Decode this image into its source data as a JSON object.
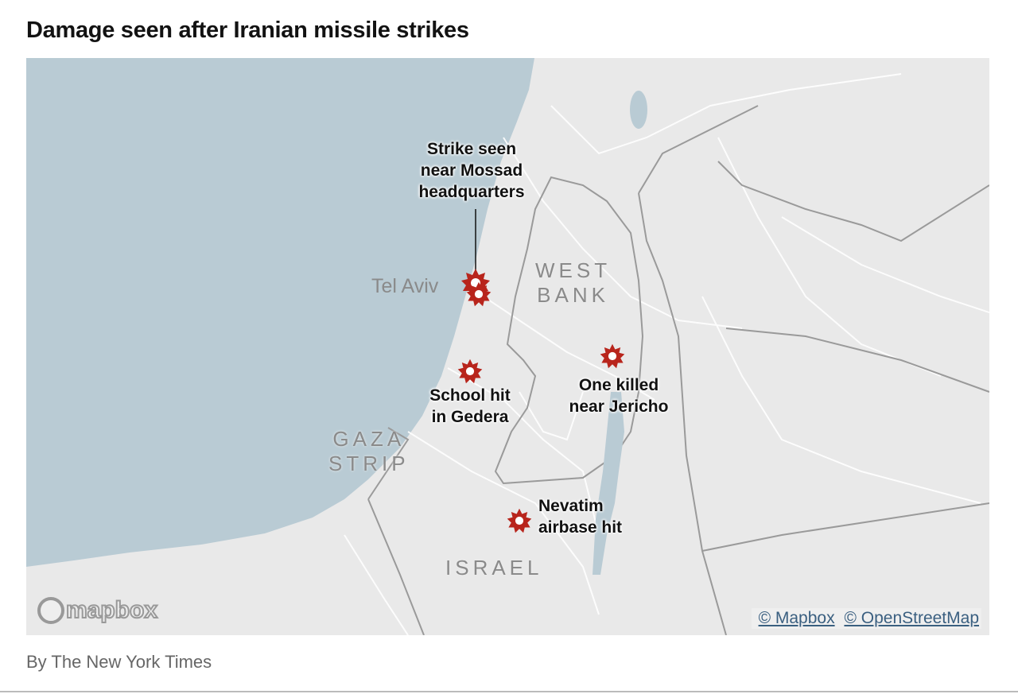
{
  "title": "Damage seen after Iranian missile strikes",
  "map": {
    "colors": {
      "water": "#b9cbd4",
      "land": "#e9e9e9",
      "roads": "#ffffff",
      "borders": "#9a9a9a",
      "strike": "#b8251c"
    },
    "regions": {
      "west_bank": [
        "WEST",
        "BANK"
      ],
      "gaza": [
        "GAZA",
        "STRIP"
      ],
      "israel": "ISRAEL"
    },
    "cities": {
      "tel_aviv": "Tel Aviv"
    },
    "annotations": [
      {
        "lines": [
          "Strike seen",
          "near Mossad",
          "headquarters"
        ],
        "icon": "explosion-icon"
      },
      {
        "lines": [
          "School hit",
          "in Gedera"
        ],
        "icon": "explosion-icon"
      },
      {
        "lines": [
          "One killed",
          "near Jericho"
        ],
        "icon": "explosion-icon"
      },
      {
        "lines": [
          "Nevatim",
          "airbase hit"
        ],
        "icon": "explosion-icon"
      }
    ],
    "logo": "mapbox",
    "attribution": [
      "© Mapbox",
      "© OpenStreetMap"
    ]
  },
  "credit": "By The New York Times"
}
